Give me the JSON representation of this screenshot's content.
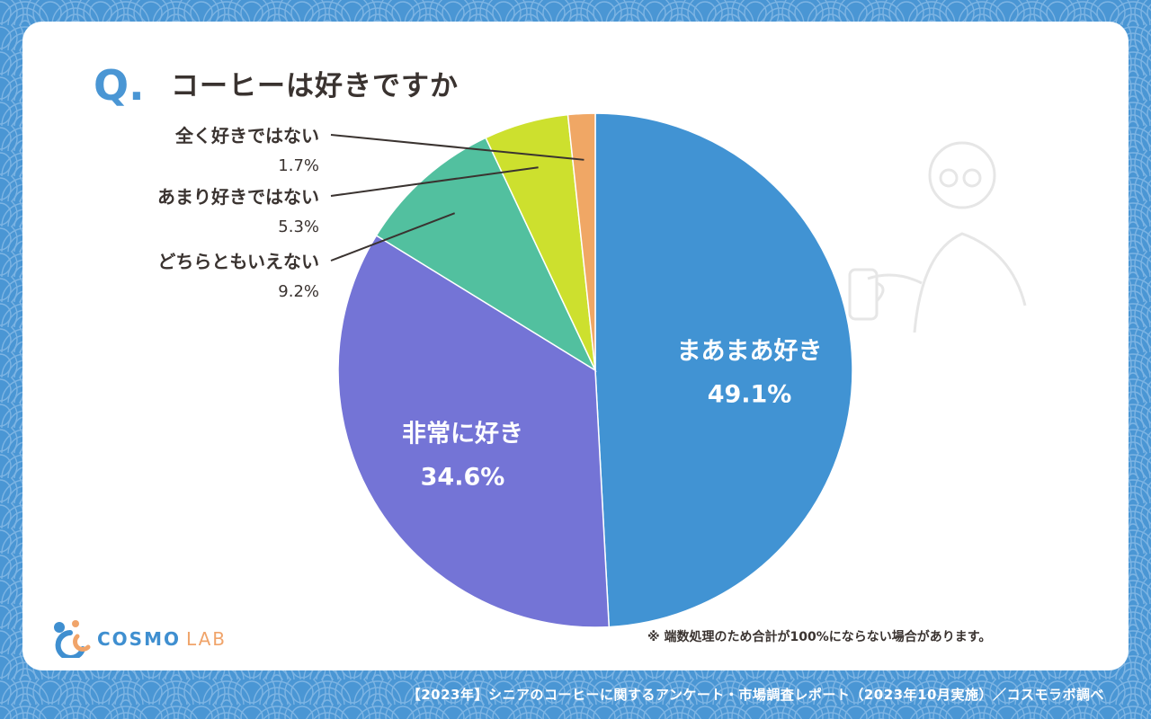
{
  "question": {
    "prefix": "Q.",
    "text": "コーヒーは好きですか"
  },
  "colors": {
    "background": "#4a96d4",
    "card": "#ffffff",
    "text": "#3a3330"
  },
  "chart_data": {
    "type": "pie",
    "start": "12 o'clock, clockwise",
    "slices": [
      {
        "label": "まあまあ好き",
        "value": 49.1,
        "value_label": "49.1%",
        "color": "#4193d3",
        "label_position": "inside"
      },
      {
        "label": "非常に好き",
        "value": 34.6,
        "value_label": "34.6%",
        "color": "#7474d6",
        "label_position": "inside"
      },
      {
        "label": "どちらともいえない",
        "value": 9.2,
        "value_label": "9.2%",
        "color": "#52c09f",
        "label_position": "outside"
      },
      {
        "label": "あまり好きではない",
        "value": 5.3,
        "value_label": "5.3%",
        "color": "#cde02e",
        "label_position": "outside"
      },
      {
        "label": "全く好きではない",
        "value": 1.7,
        "value_label": "1.7%",
        "color": "#f0a765",
        "label_position": "outside"
      }
    ]
  },
  "note": "※ 端数処理のため合計が100%にならない場合があります。",
  "footer": "【2023年】シニアのコーヒーに関するアンケート・市場調査レポート（2023年10月実施）／コスモラボ調べ",
  "logo": {
    "main": "COSMO",
    "sub": "LAB"
  }
}
